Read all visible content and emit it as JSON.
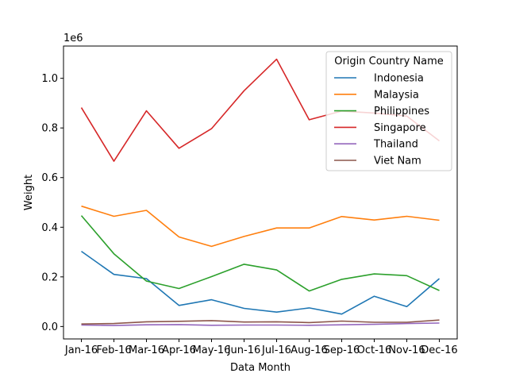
{
  "chart_data": {
    "type": "line",
    "x": [
      "Jan-16",
      "Feb-16",
      "Mar-16",
      "Apr-16",
      "May-16",
      "Jun-16",
      "Jul-16",
      "Aug-16",
      "Sep-16",
      "Oct-16",
      "Nov-16",
      "Dec-16"
    ],
    "xlabel": "Data Month",
    "ylabel": "Weight",
    "y_multiplier": "1e6",
    "ylim": [
      -0.05,
      1.13
    ],
    "yticks": [
      0.0,
      0.2,
      0.4,
      0.6,
      0.8,
      1.0
    ],
    "ytick_labels": [
      "0.0",
      "0.2",
      "0.4",
      "0.6",
      "0.8",
      "1.0"
    ],
    "grid": false,
    "legend_title": "Origin Country Name",
    "legend_position": "top-right",
    "series": [
      {
        "name": "Indonesia",
        "color": "#1f77b4",
        "values": [
          0.303,
          0.21,
          0.193,
          0.085,
          0.108,
          0.073,
          0.058,
          0.075,
          0.05,
          0.122,
          0.08,
          0.193
        ]
      },
      {
        "name": "Malaysia",
        "color": "#ff7f0e",
        "values": [
          0.485,
          0.444,
          0.468,
          0.361,
          0.323,
          0.363,
          0.397,
          0.397,
          0.443,
          0.429,
          0.444,
          0.428
        ]
      },
      {
        "name": "Philippines",
        "color": "#2ca02c",
        "values": [
          0.447,
          0.293,
          0.183,
          0.153,
          0.201,
          0.251,
          0.228,
          0.143,
          0.19,
          0.212,
          0.205,
          0.145
        ]
      },
      {
        "name": "Singapore",
        "color": "#d62728",
        "values": [
          0.882,
          0.666,
          0.869,
          0.718,
          0.797,
          0.95,
          1.077,
          0.833,
          0.868,
          0.86,
          0.848,
          0.748
        ]
      },
      {
        "name": "Thailand",
        "color": "#9467bd",
        "values": [
          0.006,
          0.004,
          0.007,
          0.008,
          0.005,
          0.006,
          0.006,
          0.005,
          0.007,
          0.009,
          0.012,
          0.014
        ]
      },
      {
        "name": "Viet Nam",
        "color": "#8c564b",
        "values": [
          0.01,
          0.012,
          0.019,
          0.021,
          0.024,
          0.018,
          0.019,
          0.016,
          0.022,
          0.017,
          0.017,
          0.026
        ]
      }
    ]
  }
}
